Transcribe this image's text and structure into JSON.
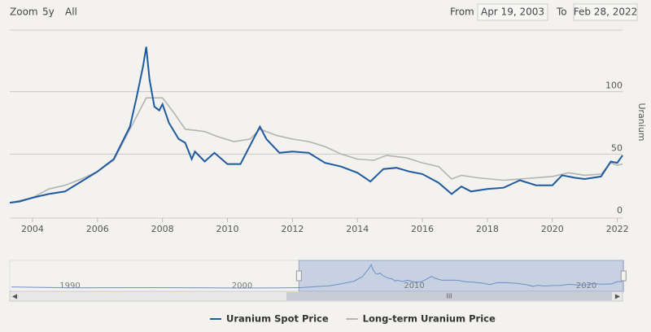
{
  "range_selector": {
    "zoom_label": "Zoom",
    "buttons": [
      "5y",
      "All"
    ],
    "from_label": "From",
    "from": "Apr 19, 2003",
    "to_label": "To",
    "to": "Feb 28, 2022"
  },
  "chart_data": {
    "type": "line",
    "y_axis_title": "Uranium",
    "xlim": [
      2003.3,
      2022.16
    ],
    "xticks": [
      2004,
      2006,
      2008,
      2010,
      2012,
      2014,
      2016,
      2018,
      2020,
      2022
    ],
    "ylim": [
      0,
      150
    ],
    "yticks": [
      0,
      50,
      100
    ],
    "grid": true,
    "series": [
      {
        "name": "Uranium Spot Price",
        "color": "#1f5aa0",
        "x": [
          2003.3,
          2003.6,
          2004.0,
          2004.5,
          2005.0,
          2005.5,
          2006.0,
          2006.5,
          2007.0,
          2007.2,
          2007.4,
          2007.5,
          2007.6,
          2007.75,
          2007.9,
          2008.0,
          2008.2,
          2008.5,
          2008.7,
          2008.9,
          2009.0,
          2009.3,
          2009.6,
          2010.0,
          2010.4,
          2010.8,
          2011.0,
          2011.2,
          2011.6,
          2012.0,
          2012.5,
          2013.0,
          2013.5,
          2014.0,
          2014.4,
          2014.8,
          2015.2,
          2015.6,
          2016.0,
          2016.5,
          2016.9,
          2017.2,
          2017.5,
          2018.0,
          2018.5,
          2019.0,
          2019.5,
          2020.0,
          2020.3,
          2020.7,
          2021.0,
          2021.5,
          2021.8,
          2022.0,
          2022.16
        ],
        "values": [
          11,
          12,
          15,
          18,
          20,
          28,
          36,
          46,
          72,
          95,
          120,
          136,
          110,
          88,
          85,
          90,
          75,
          62,
          59,
          46,
          52,
          44,
          51,
          42,
          42,
          62,
          72,
          62,
          51,
          52,
          51,
          43,
          40,
          35,
          28,
          38,
          39,
          36,
          34,
          27,
          18,
          24,
          20,
          22,
          23,
          29,
          25,
          25,
          33,
          31,
          30,
          32,
          44,
          43,
          49
        ]
      },
      {
        "name": "Long-term Uranium Price",
        "color": "#b3b3b3",
        "x": [
          2003.3,
          2004.0,
          2004.5,
          2005.0,
          2005.5,
          2006.0,
          2006.5,
          2007.0,
          2007.3,
          2007.5,
          2008.0,
          2008.3,
          2008.7,
          2009.3,
          2009.7,
          2010.2,
          2010.7,
          2011.0,
          2011.5,
          2012.0,
          2012.5,
          2013.0,
          2013.5,
          2014.0,
          2014.5,
          2014.9,
          2015.5,
          2016.0,
          2016.5,
          2016.9,
          2017.2,
          2017.7,
          2018.5,
          2019.0,
          2020.0,
          2020.5,
          2021.0,
          2021.5,
          2021.8,
          2022.0,
          2022.16
        ],
        "values": [
          11,
          15,
          22,
          25,
          30,
          36,
          45,
          70,
          85,
          95,
          95,
          85,
          70,
          68,
          64,
          60,
          62,
          70,
          65,
          62,
          60,
          56,
          50,
          46,
          45,
          49,
          47,
          43,
          40,
          30,
          33,
          31,
          29,
          30,
          32,
          35,
          33,
          34,
          43,
          41,
          42
        ]
      }
    ],
    "navigator": {
      "xlim": [
        1986.5,
        2022.1
      ],
      "xticks": [
        1990,
        2000,
        2010,
        2020
      ],
      "x": [
        1986.6,
        1990,
        1995,
        2000,
        2002.5
      ],
      "values": [
        15,
        10,
        11,
        9,
        10
      ]
    }
  }
}
